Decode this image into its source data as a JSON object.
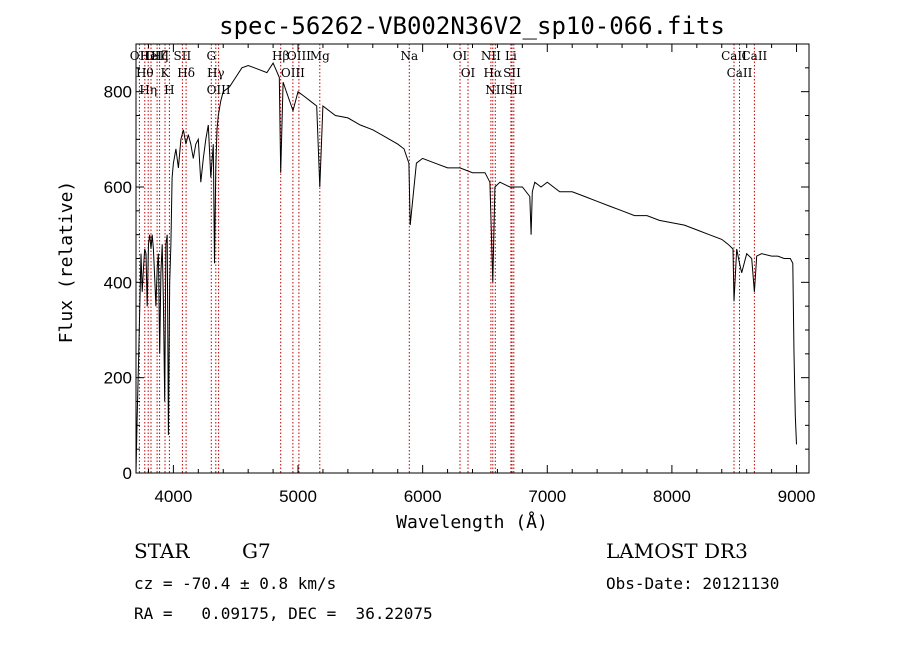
{
  "chart_data": {
    "type": "line",
    "title": "spec-56262-VB002N36V2_sp10-066.fits",
    "xlabel": "Wavelength (Å)",
    "ylabel": "Flux (relative)",
    "xlim": [
      3700,
      9100
    ],
    "ylim": [
      0,
      900
    ],
    "xticks": [
      4000,
      5000,
      6000,
      7000,
      8000,
      9000
    ],
    "yticks": [
      0,
      200,
      400,
      600,
      800
    ],
    "grid": false,
    "series": [
      {
        "x": [
          3700,
          3710,
          3720,
          3730,
          3740,
          3750,
          3760,
          3770,
          3780,
          3790,
          3800,
          3810,
          3820,
          3830,
          3840,
          3850,
          3860,
          3870,
          3880,
          3890,
          3900,
          3910,
          3920,
          3930,
          3940,
          3950,
          3960,
          3970,
          3980,
          3990,
          4000,
          4020,
          4040,
          4060,
          4080,
          4100,
          4120,
          4140,
          4160,
          4180,
          4200,
          4220,
          4240,
          4260,
          4280,
          4300,
          4320,
          4330,
          4340,
          4350,
          4360,
          4380,
          4400,
          4450,
          4500,
          4550,
          4600,
          4650,
          4700,
          4750,
          4800,
          4850,
          4861,
          4880,
          4920,
          4960,
          5000,
          5050,
          5100,
          5150,
          5175,
          5200,
          5300,
          5400,
          5500,
          5600,
          5700,
          5800,
          5850,
          5890,
          5900,
          5950,
          6000,
          6100,
          6200,
          6300,
          6400,
          6500,
          6540,
          6563,
          6580,
          6620,
          6700,
          6800,
          6860,
          6870,
          6880,
          6900,
          6950,
          7000,
          7100,
          7200,
          7300,
          7400,
          7500,
          7600,
          7700,
          7800,
          7900,
          8000,
          8100,
          8200,
          8300,
          8400,
          8450,
          8490,
          8498,
          8520,
          8542,
          8560,
          8600,
          8640,
          8662,
          8680,
          8720,
          8800,
          8850,
          8900,
          8950,
          8970,
          8980,
          8990,
          9000
        ],
        "values": [
          0,
          120,
          230,
          340,
          460,
          380,
          430,
          470,
          460,
          350,
          480,
          500,
          470,
          500,
          470,
          410,
          350,
          430,
          460,
          250,
          420,
          480,
          360,
          150,
          480,
          500,
          80,
          400,
          480,
          620,
          650,
          680,
          640,
          700,
          720,
          690,
          710,
          690,
          660,
          690,
          700,
          610,
          660,
          700,
          730,
          620,
          690,
          440,
          640,
          720,
          750,
          780,
          800,
          810,
          830,
          850,
          855,
          850,
          845,
          840,
          860,
          830,
          630,
          820,
          790,
          760,
          800,
          790,
          780,
          770,
          600,
          770,
          750,
          745,
          730,
          720,
          705,
          690,
          680,
          650,
          520,
          650,
          660,
          650,
          640,
          640,
          630,
          630,
          610,
          400,
          600,
          610,
          600,
          600,
          580,
          500,
          590,
          610,
          600,
          610,
          590,
          590,
          580,
          570,
          560,
          550,
          540,
          540,
          530,
          525,
          520,
          510,
          500,
          490,
          480,
          470,
          360,
          470,
          440,
          420,
          460,
          450,
          380,
          455,
          460,
          455,
          455,
          450,
          450,
          440,
          250,
          120,
          60
        ]
      }
    ],
    "spectral_lines": [
      {
        "wavelength": 3727,
        "label": "OII"
      },
      {
        "wavelength": 3771,
        "label": "Hθ"
      },
      {
        "wavelength": 3798,
        "label": "Hη"
      },
      {
        "wavelength": 3820,
        "label": "HeI"
      },
      {
        "wavelength": 3869,
        "label": "OIII"
      },
      {
        "wavelength": 3889,
        "label": "Hζ"
      },
      {
        "wavelength": 3933,
        "label": "K"
      },
      {
        "wavelength": 3968,
        "label": "H"
      },
      {
        "wavelength": 4072,
        "label": "SII"
      },
      {
        "wavelength": 4102,
        "label": "Hδ"
      },
      {
        "wavelength": 4304,
        "label": "G"
      },
      {
        "wavelength": 4340,
        "label": "Hγ"
      },
      {
        "wavelength": 4363,
        "label": "OIII"
      },
      {
        "wavelength": 4861,
        "label": "Hβ"
      },
      {
        "wavelength": 4959,
        "label": "OIII"
      },
      {
        "wavelength": 5007,
        "label": "OIII"
      },
      {
        "wavelength": 5175,
        "label": "Mg"
      },
      {
        "wavelength": 5893,
        "label": "Na"
      },
      {
        "wavelength": 6300,
        "label": "OI"
      },
      {
        "wavelength": 6364,
        "label": "OI"
      },
      {
        "wavelength": 6548,
        "label": "NII"
      },
      {
        "wavelength": 6563,
        "label": "Hα"
      },
      {
        "wavelength": 6583,
        "label": "NII"
      },
      {
        "wavelength": 6708,
        "label": "Li"
      },
      {
        "wavelength": 6717,
        "label": "SII"
      },
      {
        "wavelength": 6731,
        "label": "SII"
      },
      {
        "wavelength": 8498,
        "label": "CaII"
      },
      {
        "wavelength": 8542,
        "label": "CaII"
      },
      {
        "wavelength": 8662,
        "label": "CaII"
      }
    ]
  },
  "info": {
    "class": "STAR",
    "subclass": "G7",
    "survey": "LAMOST DR3",
    "cz": "cz = -70.4 ± 0.8 km/s",
    "obs_date": "Obs-Date: 20121130",
    "radec": "RA =   0.09175, DEC =  36.22075"
  },
  "colors": {
    "spectrum": "#000000",
    "line_marker": "#c00000",
    "axes": "#000000"
  }
}
